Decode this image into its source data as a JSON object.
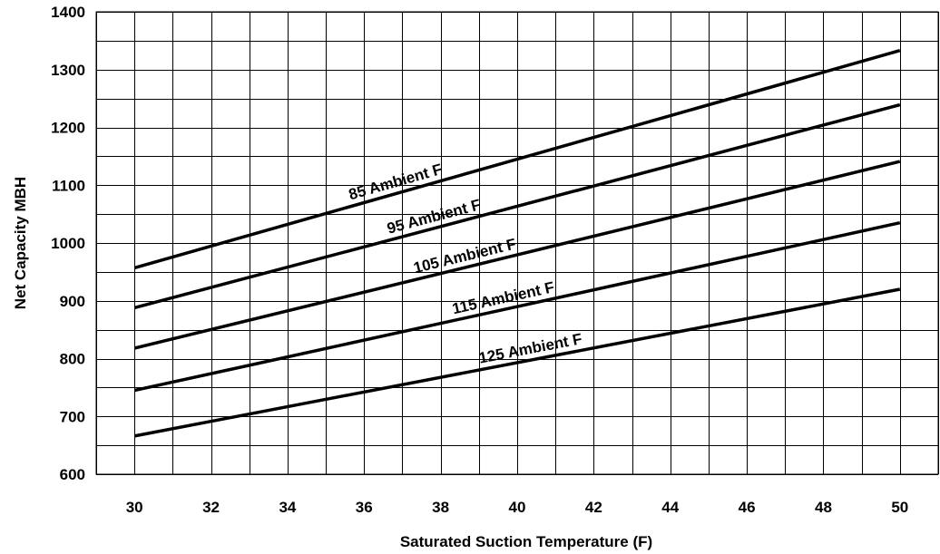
{
  "chart_data": {
    "type": "line",
    "title": "",
    "xlabel": "Saturated Suction Temperature (F)",
    "ylabel": "Net Capacity MBH",
    "xlim": [
      29,
      51
    ],
    "ylim": [
      600,
      1400
    ],
    "x_ticks": [
      30,
      32,
      34,
      36,
      38,
      40,
      42,
      44,
      46,
      48,
      50
    ],
    "y_ticks": [
      600,
      700,
      800,
      900,
      1000,
      1100,
      1200,
      1300,
      1400
    ],
    "x_tick_labels": [
      "30",
      "32",
      "34",
      "36",
      "38",
      "40",
      "42",
      "44",
      "46",
      "48",
      "50"
    ],
    "y_tick_labels": [
      "600",
      "700",
      "800",
      "900",
      "1000",
      "1100",
      "1200",
      "1300",
      "1400"
    ],
    "grid": true,
    "line_color": "#000000",
    "series": [
      {
        "name": "85 Ambient F",
        "x": [
          30,
          50
        ],
        "values": [
          957,
          1333
        ]
      },
      {
        "name": "95 Ambient F",
        "x": [
          30,
          50
        ],
        "values": [
          888,
          1239
        ]
      },
      {
        "name": "105 Ambient F",
        "x": [
          30,
          50
        ],
        "values": [
          818,
          1141
        ]
      },
      {
        "name": "115 Ambient F",
        "x": [
          30,
          50
        ],
        "values": [
          745,
          1035
        ]
      },
      {
        "name": "125 Ambient F",
        "x": [
          30,
          50
        ],
        "values": [
          666,
          920
        ]
      }
    ]
  }
}
